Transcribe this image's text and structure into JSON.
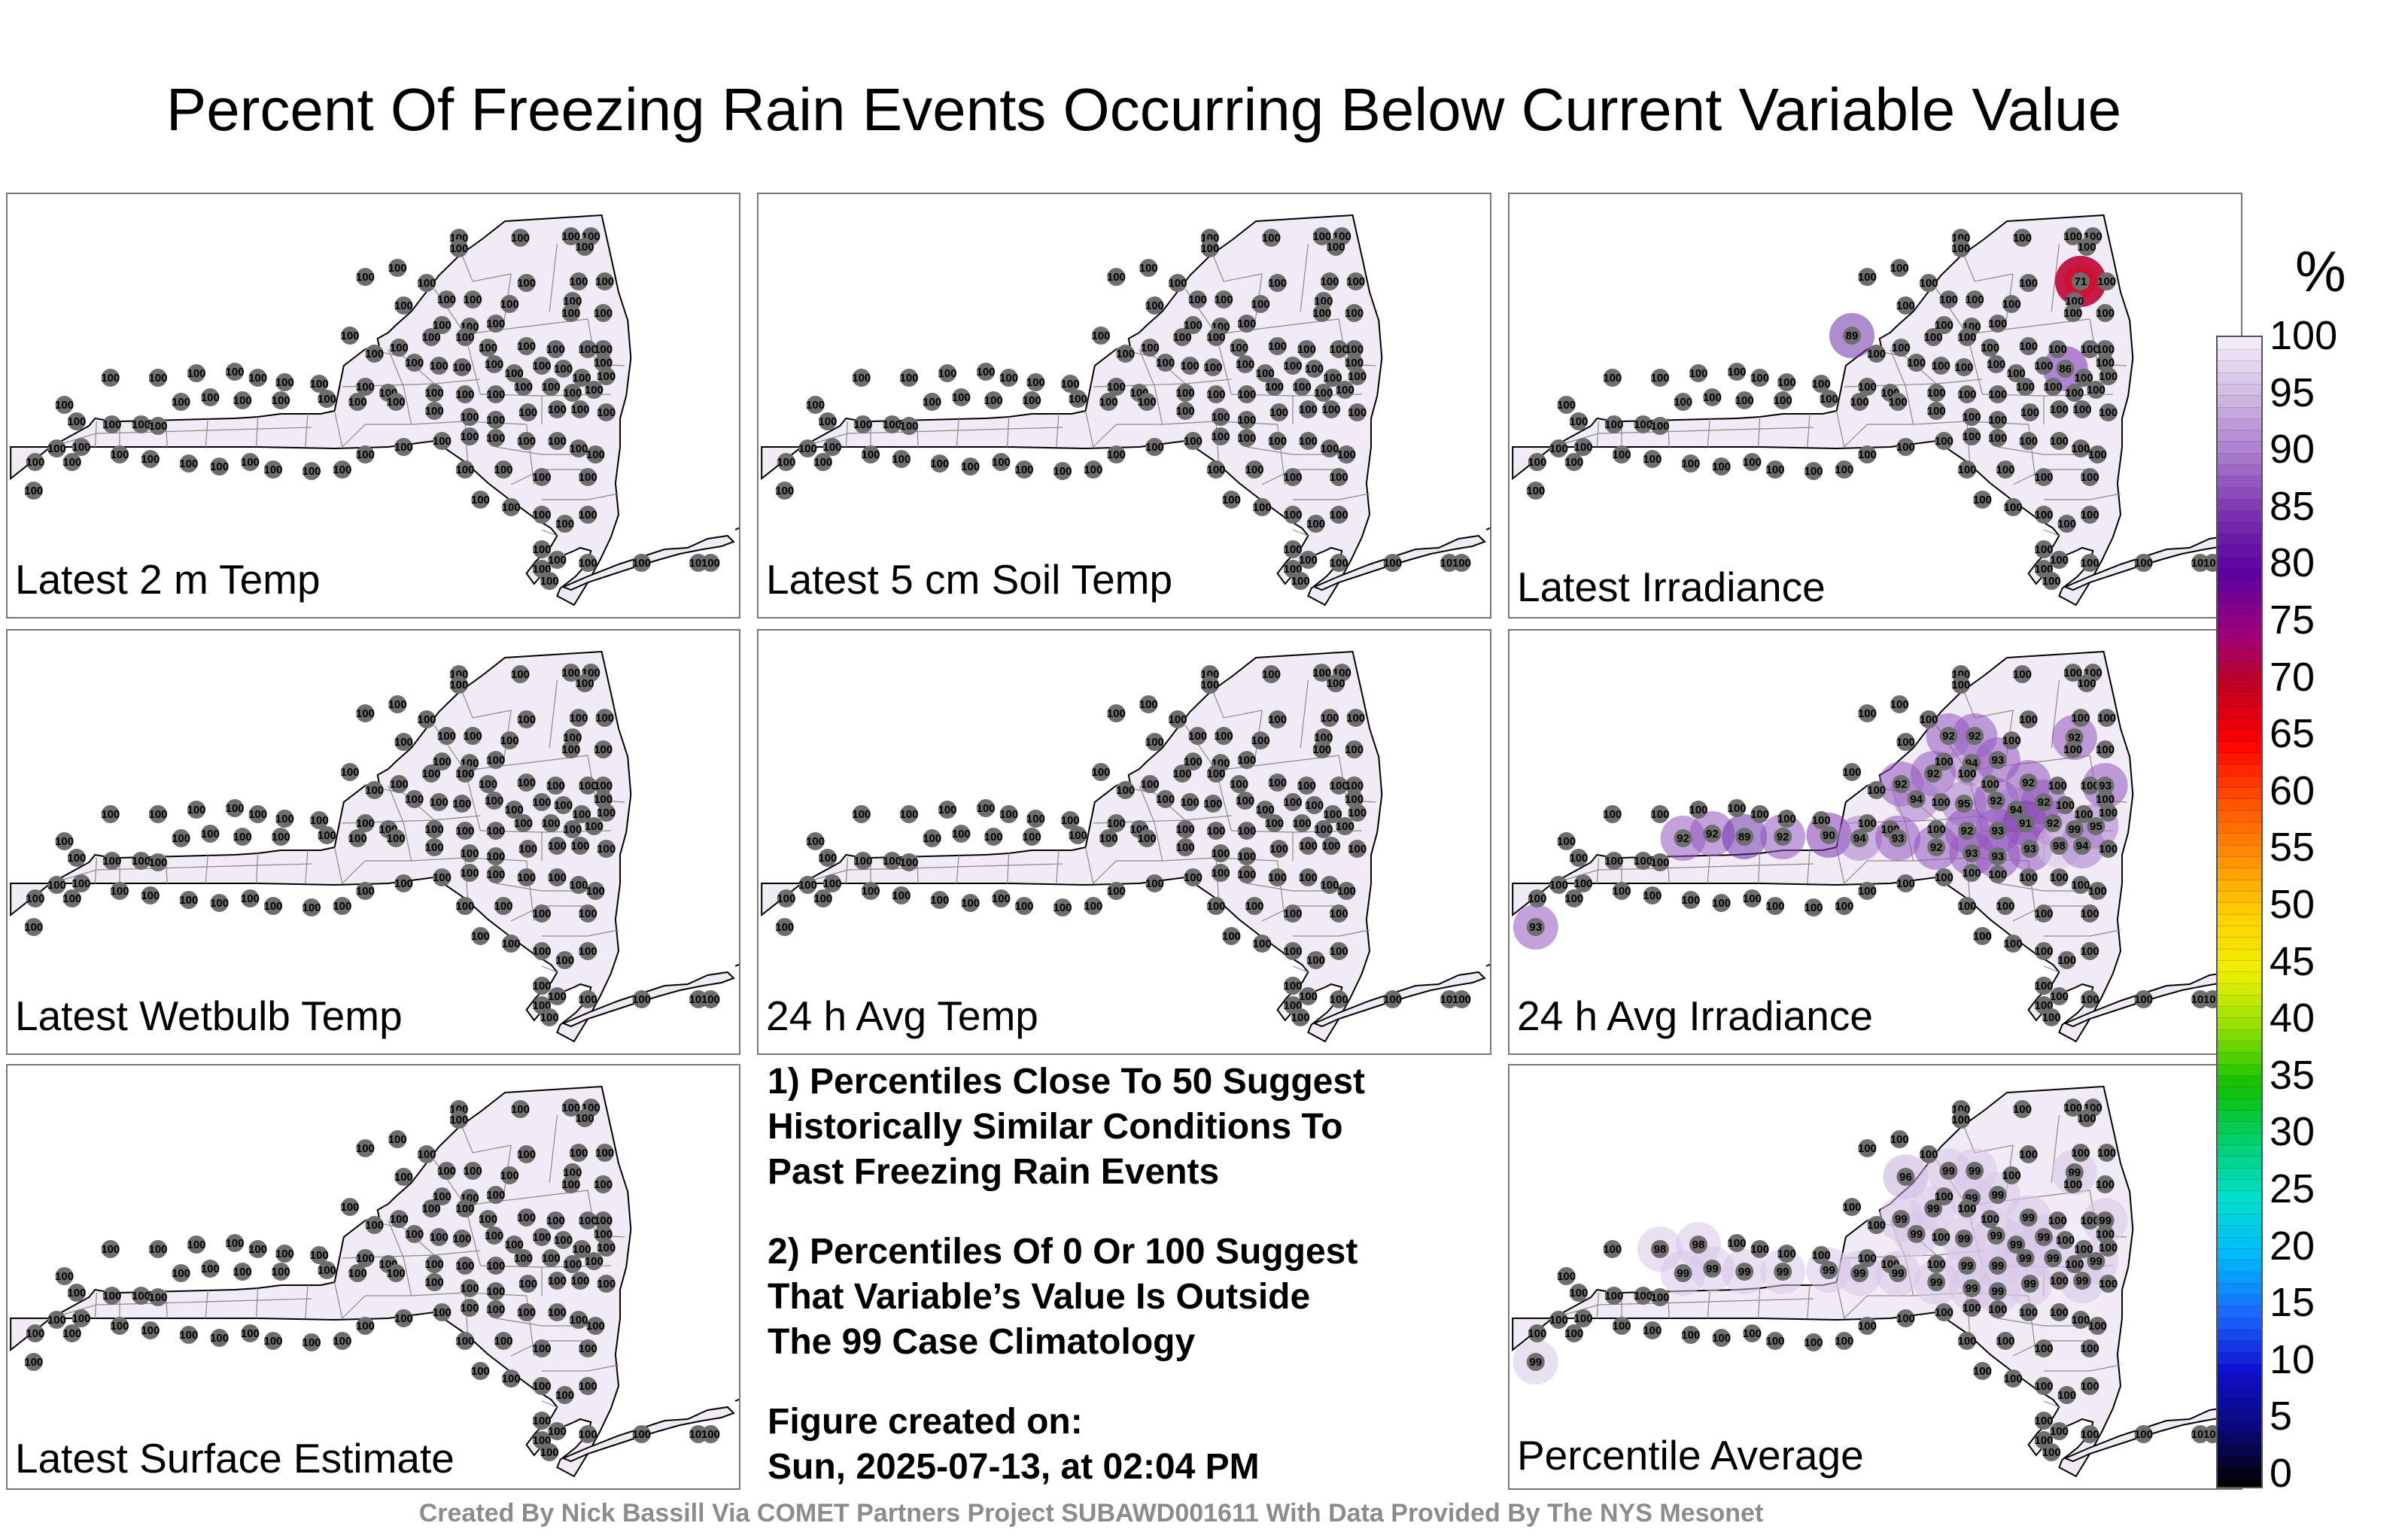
{
  "title": "Percent Of Freezing Rain Events Occurring Below Current Variable Value",
  "panels": [
    {
      "label": "Latest 2 m Temp",
      "uniform": 100,
      "anomalies": []
    },
    {
      "label": "Latest 5 cm Soil Temp",
      "uniform": 100,
      "anomalies": []
    },
    {
      "label": "Latest Irradiance",
      "uniform": 100,
      "anomalies": [
        {
          "station": 10,
          "value": 71
        },
        {
          "station": 22,
          "value": 89
        },
        {
          "station": 40,
          "value": 86
        }
      ]
    },
    {
      "label": "Latest Wetbulb Temp",
      "uniform": 100,
      "anomalies": []
    },
    {
      "label": "24 h Avg Temp",
      "uniform": 100,
      "anomalies": []
    },
    {
      "label": "24 h Avg Irradiance",
      "uniform": 100,
      "anomalies": [
        {
          "station": 13,
          "value": 92
        },
        {
          "station": 14,
          "value": 92
        },
        {
          "station": 16,
          "value": 92
        },
        {
          "station": 20,
          "value": 94
        },
        {
          "station": 21,
          "value": 93
        },
        {
          "station": 23,
          "value": 92
        },
        {
          "station": 26,
          "value": 92
        },
        {
          "station": 29,
          "value": 93
        },
        {
          "station": 33,
          "value": 92
        },
        {
          "station": 34,
          "value": 94
        },
        {
          "station": 36,
          "value": 95
        },
        {
          "station": 37,
          "value": 92
        },
        {
          "station": 38,
          "value": 94
        },
        {
          "station": 39,
          "value": 92
        },
        {
          "station": 52,
          "value": 92
        },
        {
          "station": 53,
          "value": 93
        },
        {
          "station": 54,
          "value": 91
        },
        {
          "station": 55,
          "value": 92
        },
        {
          "station": 56,
          "value": 99
        },
        {
          "station": 57,
          "value": 95
        },
        {
          "station": 58,
          "value": 92
        },
        {
          "station": 59,
          "value": 92
        },
        {
          "station": 60,
          "value": 89
        },
        {
          "station": 61,
          "value": 92
        },
        {
          "station": 62,
          "value": 90
        },
        {
          "station": 63,
          "value": 94
        },
        {
          "station": 64,
          "value": 93
        },
        {
          "station": 65,
          "value": 92
        },
        {
          "station": 66,
          "value": 93
        },
        {
          "station": 67,
          "value": 93
        },
        {
          "station": 68,
          "value": 93
        },
        {
          "station": 69,
          "value": 98
        },
        {
          "station": 70,
          "value": 94
        },
        {
          "station": 78,
          "value": 93
        }
      ]
    },
    {
      "label": "Latest Surface Estimate",
      "uniform": 100,
      "anomalies": []
    },
    {
      "label": "Percentile Average",
      "uniform": 100,
      "anomalies": [
        {
          "station": 12,
          "value": 96
        },
        {
          "station": 13,
          "value": 99
        },
        {
          "station": 14,
          "value": 99
        },
        {
          "station": 16,
          "value": 99
        },
        {
          "station": 20,
          "value": 99
        },
        {
          "station": 21,
          "value": 99
        },
        {
          "station": 23,
          "value": 99
        },
        {
          "station": 26,
          "value": 99
        },
        {
          "station": 29,
          "value": 99
        },
        {
          "station": 33,
          "value": 99
        },
        {
          "station": 34,
          "value": 99
        },
        {
          "station": 36,
          "value": 99
        },
        {
          "station": 37,
          "value": 99
        },
        {
          "station": 38,
          "value": 99
        },
        {
          "station": 39,
          "value": 99
        },
        {
          "station": 43,
          "value": 98
        },
        {
          "station": 44,
          "value": 98
        },
        {
          "station": 52,
          "value": 99
        },
        {
          "station": 53,
          "value": 99
        },
        {
          "station": 54,
          "value": 99
        },
        {
          "station": 55,
          "value": 99
        },
        {
          "station": 57,
          "value": 99
        },
        {
          "station": 58,
          "value": 99
        },
        {
          "station": 59,
          "value": 99
        },
        {
          "station": 60,
          "value": 99
        },
        {
          "station": 61,
          "value": 99
        },
        {
          "station": 62,
          "value": 99
        },
        {
          "station": 63,
          "value": 99
        },
        {
          "station": 64,
          "value": 99
        },
        {
          "station": 65,
          "value": 99
        },
        {
          "station": 66,
          "value": 99
        },
        {
          "station": 67,
          "value": 99
        },
        {
          "station": 68,
          "value": 99
        },
        {
          "station": 70,
          "value": 99
        },
        {
          "station": 78,
          "value": 99
        }
      ]
    }
  ],
  "notes": {
    "note1": [
      "1) Percentiles Close To 50 Suggest",
      "Historically Similar Conditions To",
      "Past Freezing Rain Events"
    ],
    "note2": [
      "2) Percentiles Of 0 Or 100 Suggest",
      "That Variable’s Value Is Outside",
      "The 99 Case Climatology"
    ],
    "created": [
      "Figure created on:",
      "Sun, 2025-07-13, at 02:04 PM"
    ]
  },
  "colorbar": {
    "unit": "%",
    "ticks": [
      "100",
      "95",
      "90",
      "85",
      "80",
      "75",
      "70",
      "65",
      "60",
      "55",
      "50",
      "45",
      "40",
      "35",
      "30",
      "25",
      "20",
      "15",
      "10",
      "5",
      "0"
    ],
    "stops": [
      "#000000",
      "#0a0a7a",
      "#1010d0",
      "#1a6aff",
      "#00b8ff",
      "#00e0d0",
      "#00d070",
      "#10c000",
      "#90e000",
      "#f0f000",
      "#ffd000",
      "#ff9000",
      "#ff5000",
      "#ff0000",
      "#c00020",
      "#9a0080",
      "#5a00a0",
      "#7a30b0",
      "#a878cc",
      "#ccb4e0",
      "#f2eaf6"
    ]
  },
  "credit": "Created By Nick Bassill Via COMET Partners Project SUBAWD001611 With Data Provided By The NYS Mesonet"
}
